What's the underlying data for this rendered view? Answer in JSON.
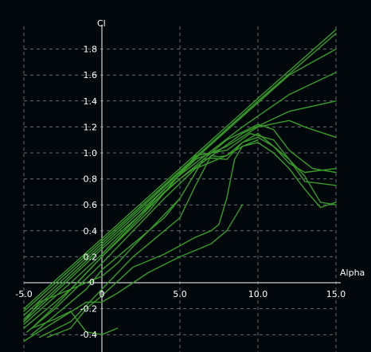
{
  "chart_data": {
    "type": "line",
    "xlabel": "Alpha",
    "ylabel": "Cl",
    "xlim": [
      -5.0,
      15.0
    ],
    "ylim": [
      -0.5,
      1.95
    ],
    "x_ticks": [
      "-5.0",
      "0",
      "5.0",
      "10.0",
      "15.0"
    ],
    "y_ticks": [
      "-0.4",
      "-0.2",
      "0",
      "0.2",
      "0.4",
      "0.6",
      "0.8",
      "1.0",
      "1.2",
      "1.4",
      "1.6",
      "1.8"
    ],
    "grid": true,
    "line_color": "#3a9a2a",
    "background": "#02070c",
    "series": [
      {
        "x": [
          -5,
          0,
          5,
          10,
          15
        ],
        "y": [
          -0.2,
          0.34,
          0.88,
          1.42,
          1.95
        ]
      },
      {
        "x": [
          -5,
          0,
          5,
          10,
          15
        ],
        "y": [
          -0.22,
          0.32,
          0.86,
          1.4,
          1.92
        ]
      },
      {
        "x": [
          -5,
          0,
          5,
          9,
          12,
          15
        ],
        "y": [
          -0.25,
          0.3,
          0.85,
          1.28,
          1.6,
          1.8
        ]
      },
      {
        "x": [
          -5,
          0,
          5,
          9,
          12,
          15
        ],
        "y": [
          -0.28,
          0.28,
          0.83,
          1.2,
          1.45,
          1.62
        ]
      },
      {
        "x": [
          -5,
          0,
          5,
          9,
          12,
          15
        ],
        "y": [
          -0.3,
          0.26,
          0.8,
          1.15,
          1.32,
          1.4
        ]
      },
      {
        "x": [
          -5,
          -2,
          0,
          4,
          6,
          8,
          10,
          12,
          13,
          15
        ],
        "y": [
          -0.32,
          0.0,
          0.22,
          0.72,
          0.95,
          1.05,
          1.2,
          1.25,
          1.2,
          1.12
        ]
      },
      {
        "x": [
          -5,
          -2,
          0,
          4,
          7,
          8,
          10,
          11,
          12,
          13.5,
          15
        ],
        "y": [
          -0.35,
          -0.05,
          0.2,
          0.7,
          1.0,
          1.1,
          1.22,
          1.18,
          1.02,
          0.88,
          0.85
        ]
      },
      {
        "x": [
          -4.5,
          -3,
          0,
          3,
          6,
          8,
          9.5,
          11,
          12,
          13,
          15
        ],
        "y": [
          -0.35,
          -0.18,
          0.2,
          0.55,
          0.98,
          1.02,
          1.15,
          1.1,
          0.95,
          0.78,
          0.75
        ]
      },
      {
        "x": [
          -4.8,
          -3,
          0,
          2,
          4,
          6,
          8,
          9,
          10,
          11,
          12,
          13,
          15
        ],
        "y": [
          -0.38,
          -0.2,
          0.15,
          0.4,
          0.65,
          0.88,
          0.98,
          1.08,
          1.15,
          1.05,
          0.92,
          0.85,
          0.88
        ]
      },
      {
        "x": [
          -4.5,
          -3,
          -1,
          0,
          3,
          5,
          6,
          6.5,
          7,
          8,
          9,
          10,
          11,
          12,
          13,
          14,
          15
        ],
        "y": [
          -0.4,
          -0.25,
          -0.05,
          0.1,
          0.4,
          0.65,
          0.85,
          0.95,
          0.96,
          0.95,
          1.08,
          1.12,
          1.05,
          0.95,
          0.82,
          0.62,
          0.6
        ]
      },
      {
        "x": [
          -4,
          -2,
          0,
          2,
          4,
          5,
          6,
          7,
          7.5,
          8,
          9,
          10,
          11,
          12,
          13,
          14,
          15
        ],
        "y": [
          -0.42,
          -0.3,
          -0.05,
          0.2,
          0.4,
          0.5,
          0.75,
          0.98,
          0.97,
          0.98,
          1.05,
          1.08,
          1.0,
          0.88,
          0.72,
          0.58,
          0.62
        ]
      },
      {
        "x": [
          -3.5,
          -2,
          -1,
          0,
          2,
          4,
          6,
          7,
          7.5,
          8,
          8.5,
          9,
          10
        ],
        "y": [
          -0.42,
          -0.35,
          -0.2,
          -0.1,
          0.12,
          0.22,
          0.35,
          0.4,
          0.45,
          0.65,
          0.95,
          1.05,
          1.1
        ]
      },
      {
        "x": [
          -5,
          -3,
          -1,
          0,
          1,
          3,
          5,
          7,
          8,
          9
        ],
        "y": [
          -0.45,
          -0.3,
          -0.15,
          -0.15,
          -0.08,
          0.08,
          0.2,
          0.3,
          0.4,
          0.6
        ]
      },
      {
        "x": [
          -5,
          -4,
          -2,
          -1,
          0,
          1,
          2,
          3,
          4,
          5
        ],
        "y": [
          -0.3,
          -0.15,
          -0.05,
          0.0,
          0.05,
          0.15,
          0.28,
          0.4,
          0.5,
          0.65
        ]
      },
      {
        "x": [
          -4.5,
          -3,
          -2,
          -1.5,
          -1,
          0,
          1
        ],
        "y": [
          -0.35,
          -0.28,
          -0.22,
          -0.3,
          -0.38,
          -0.4,
          -0.35
        ]
      }
    ]
  }
}
